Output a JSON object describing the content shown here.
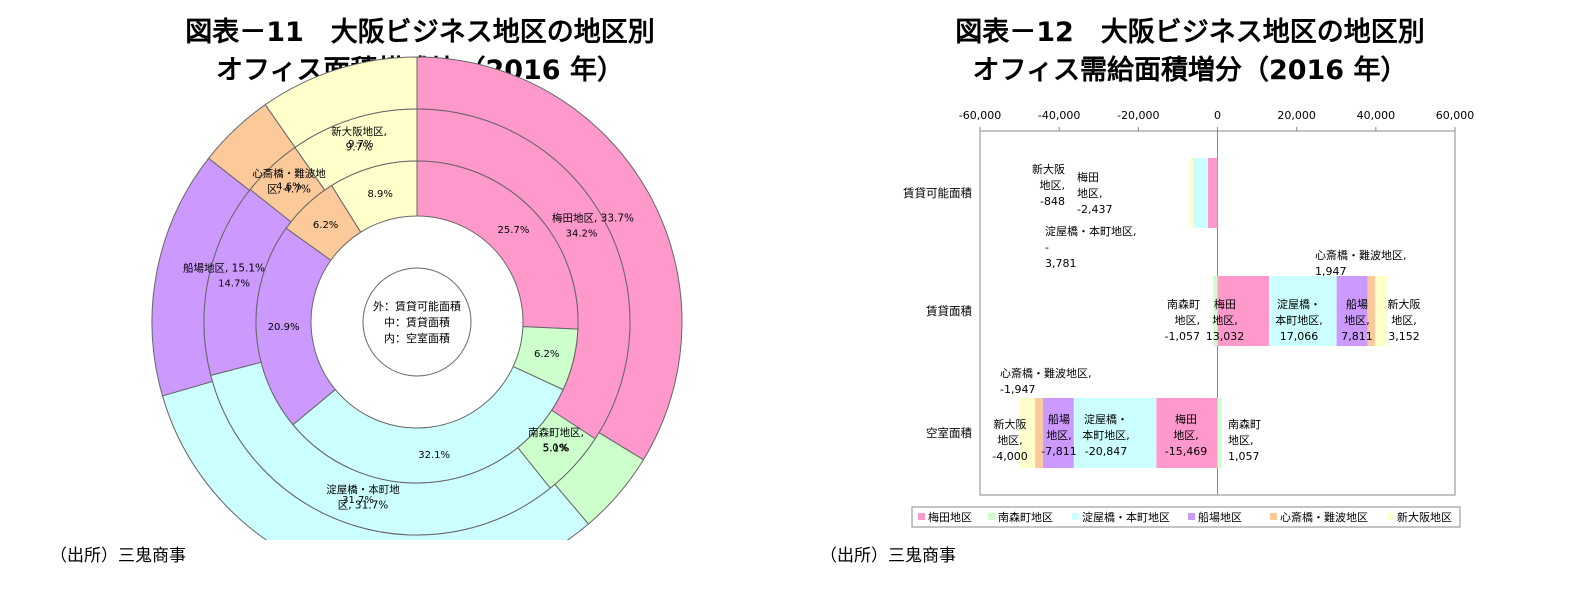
{
  "left_title": {
    "line1": "図表－11　大阪ビジネス地区の地区別",
    "line2": "オフィス面積構成比（2016 年）"
  },
  "right_title": {
    "line1": "図表－12　大阪ビジネス地区の地区別",
    "line2": "オフィス需給面積増分（2016 年）"
  },
  "left_source": "（出所）三鬼商事",
  "right_source": "（出所）三鬼商事",
  "colors": {
    "梅田地区": "#ff99cc",
    "南森町地区": "#ccffcc",
    "淀屋橋・本町地区": "#ccffff",
    "船場地区": "#cc99ff",
    "心斎橋・難波地区": "#fcc99a",
    "新大阪地区": "#ffffcc"
  },
  "chart_data": [
    {
      "type": "pie",
      "subtype": "multi-level donut",
      "center_label": [
        "外：賃貸可能面積",
        "中：賃貸面積",
        "内：空室面積"
      ],
      "categories": [
        "梅田地区",
        "南森町地区",
        "淀屋橋・本町地区",
        "船場地区",
        "心斎橋・難波地区",
        "新大阪地区"
      ],
      "series": [
        {
          "name": "外：賃貸可能面積",
          "values": [
            33.7,
            5.1,
            31.7,
            15.1,
            4.7,
            9.7
          ],
          "labels": [
            "梅田地区, 33.7%",
            "南森町地区, 5.1%",
            "淀屋橋・本町地区, 31.7%",
            "船場地区, 15.1%",
            "心斎橋・難波地区, 4.7%",
            "新大阪地区, 9.7%"
          ]
        },
        {
          "name": "中：賃貸面積",
          "values": [
            34.2,
            5.0,
            31.7,
            14.7,
            4.6,
            9.7
          ],
          "labels": [
            "34.2%",
            "5.0%",
            "31.7%",
            "14.7%",
            "4.6%",
            "9.7%"
          ]
        },
        {
          "name": "内：空室面積",
          "values": [
            25.7,
            6.2,
            32.1,
            20.9,
            6.2,
            8.9
          ],
          "labels": [
            "25.7%",
            "6.2%",
            "32.1%",
            "20.9%",
            "6.2%",
            "8.9%"
          ]
        }
      ]
    },
    {
      "type": "bar",
      "subtype": "horizontal stacked (diverging)",
      "categories": [
        "賃貸可能面積",
        "賃貸面積",
        "空室面積"
      ],
      "xlim": [
        -60000,
        60000
      ],
      "xticks": [
        "-60,000",
        "-40,000",
        "-20,000",
        "0",
        "20,000",
        "40,000",
        "60,000"
      ],
      "legend_position": "bottom",
      "series": [
        {
          "name": "梅田地区",
          "values": [
            -2437,
            13032,
            -15469
          ],
          "labels": [
            "梅田 地区, -2,437",
            "梅田 地区, 13,032",
            "梅田 地区, -15,469"
          ]
        },
        {
          "name": "南森町地区",
          "values": [
            0,
            -1057,
            1057
          ],
          "labels": [
            "",
            "南森町 地区, -1,057",
            "南森町 地区, 1,057"
          ]
        },
        {
          "name": "淀屋橋・本町地区",
          "values": [
            -3781,
            17066,
            -20847
          ],
          "labels": [
            "淀屋橋・本町地区, - 3,781",
            "淀屋橋・ 本町地区, 17,066",
            "淀屋橋・ 本町地区, -20,847"
          ]
        },
        {
          "name": "船場地区",
          "values": [
            0,
            7811,
            -7811
          ],
          "labels": [
            "",
            "船場 地区, 7,811",
            "船場 地区, -7,811"
          ]
        },
        {
          "name": "心斎橋・難波地区",
          "values": [
            0,
            1947,
            -1947
          ],
          "labels": [
            "",
            "心斎橋・難波地区, 1,947",
            "心斎橋・難波地区, -1,947"
          ]
        },
        {
          "name": "新大阪地区",
          "values": [
            -848,
            3152,
            -4000
          ],
          "labels": [
            "新大阪 地区, -848",
            "新大阪 地区, 3,152",
            "新大阪 地区, -4,000"
          ]
        }
      ]
    }
  ]
}
